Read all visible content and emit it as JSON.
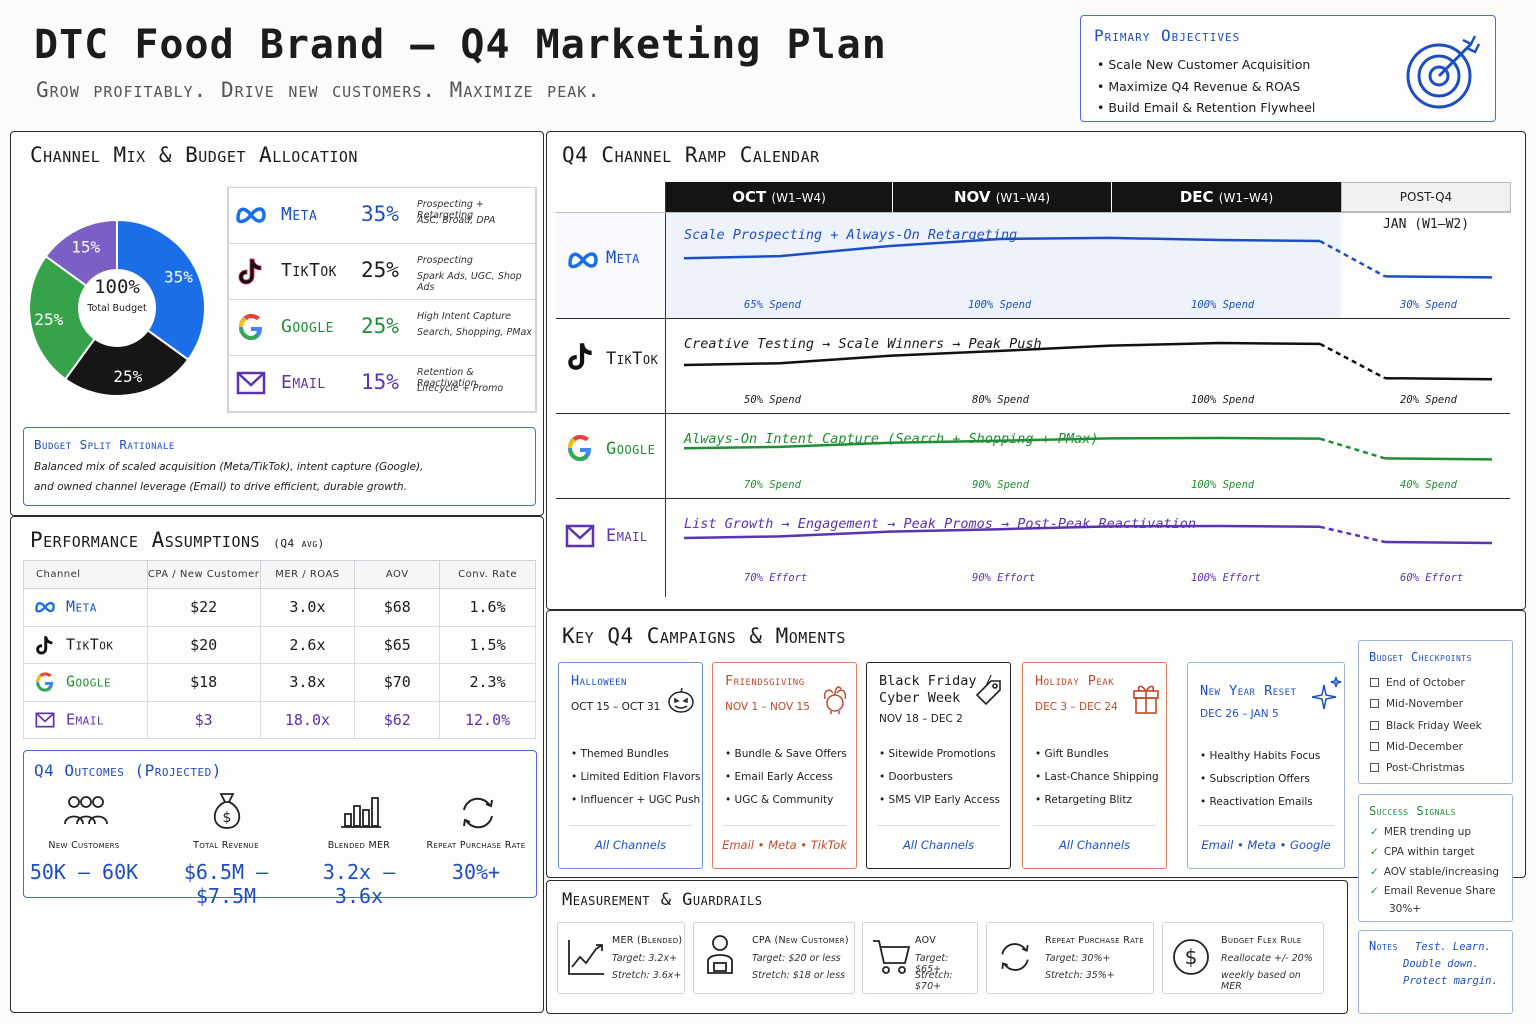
{
  "header": {
    "title": "DTC Food Brand – Q4 Marketing Plan",
    "subtitle": "Grow profitably. Drive new customers. Maximize peak."
  },
  "objectives": {
    "title": "Primary Objectives",
    "items": [
      "Scale New Customer Acquisition",
      "Maximize Q4 Revenue & ROAS",
      "Build Email & Retention Flywheel"
    ],
    "icon": "target-icon"
  },
  "channel_mix": {
    "title": "Channel Mix & Budget Allocation",
    "center_value": "100%",
    "center_label": "Total Budget",
    "channels": [
      {
        "name": "Meta",
        "pct": "35%",
        "desc1": "Prospecting + Retargeting",
        "desc2": "ASC, Broad, DPA",
        "color": "#1a6fe8",
        "icon": "meta-icon"
      },
      {
        "name": "TikTok",
        "pct": "25%",
        "desc1": "Prospecting",
        "desc2": "Spark Ads, UGC, Shop Ads",
        "color": "#161616",
        "icon": "tiktok-icon"
      },
      {
        "name": "Google",
        "pct": "25%",
        "desc1": "High Intent Capture",
        "desc2": "Search, Shopping, PMax",
        "color": "#36a24a",
        "icon": "google-icon"
      },
      {
        "name": "Email",
        "pct": "15%",
        "desc1": "Retention & Reactivation",
        "desc2": "Lifecycle + Promo",
        "color": "#7b5fc4",
        "icon": "email-icon"
      }
    ],
    "rationale_title": "Budget Split Rationale",
    "rationale_line1": "Balanced mix of scaled acquisition (Meta/TikTok), intent capture (Google),",
    "rationale_line2": "and owned channel leverage (Email) to drive efficient, durable growth."
  },
  "chart_data": {
    "type": "pie",
    "categories": [
      "Meta",
      "TikTok",
      "Google",
      "Email"
    ],
    "values": [
      35,
      25,
      25,
      15
    ],
    "labels": [
      "35%",
      "25%",
      "25%",
      "15%"
    ],
    "colors": [
      "#1a6fe8",
      "#161616",
      "#36a24a",
      "#7b5fc4"
    ]
  },
  "performance": {
    "title": "Performance Assumptions",
    "title_note": "(Q4 avg)",
    "columns": [
      "Channel",
      "CPA / New Customer",
      "MER / ROAS",
      "AOV",
      "Conv. Rate"
    ],
    "rows": [
      {
        "channel": "Meta",
        "cpa": "$22",
        "mer": "3.0x",
        "aov": "$68",
        "conv": "1.6%"
      },
      {
        "channel": "TikTok",
        "cpa": "$20",
        "mer": "2.6x",
        "aov": "$65",
        "conv": "1.5%"
      },
      {
        "channel": "Google",
        "cpa": "$18",
        "mer": "3.8x",
        "aov": "$70",
        "conv": "2.3%"
      },
      {
        "channel": "Email",
        "cpa": "$3",
        "mer": "18.0x",
        "aov": "$62",
        "conv": "12.0%"
      }
    ]
  },
  "outcomes": {
    "title": "Q4 Outcomes (Projected)",
    "items": [
      {
        "label": "New Customers",
        "value": "50K – 60K",
        "icon": "people-icon"
      },
      {
        "label": "Total Revenue",
        "value": "$6.5M – $7.5M",
        "icon": "money-bag-icon"
      },
      {
        "label": "Blended MER",
        "value": "3.2x – 3.6x",
        "icon": "bar-chart-icon"
      },
      {
        "label": "Repeat Purchase Rate",
        "value": "30%+",
        "icon": "refresh-icon"
      }
    ]
  },
  "calendar": {
    "title": "Q4 Channel Ramp Calendar",
    "months": [
      {
        "name": "OCT",
        "weeks": "(W1–W4)"
      },
      {
        "name": "NOV",
        "weeks": "(W1–W4)"
      },
      {
        "name": "DEC",
        "weeks": "(W1–W4)"
      }
    ],
    "post_label": "POST-Q4",
    "post_weeks": "JAN (W1–W2)",
    "rows": [
      {
        "channel": "Meta",
        "desc": "Scale Prospecting + Always-On Retargeting",
        "levels": [
          "65% Spend",
          "100% Spend",
          "100% Spend",
          "30% Spend"
        ],
        "level_values": [
          65,
          100,
          100,
          30
        ],
        "color": "#1d4fc4"
      },
      {
        "channel": "TikTok",
        "desc": "Creative Testing → Scale Winners → Peak Push",
        "levels": [
          "50% Spend",
          "80% Spend",
          "100% Spend",
          "20% Spend"
        ],
        "level_values": [
          50,
          80,
          100,
          20
        ],
        "color": "#111111"
      },
      {
        "channel": "Google",
        "desc": "Always-On Intent Capture (Search + Shopping + PMax)",
        "levels": [
          "70% Spend",
          "90% Spend",
          "100% Spend",
          "40% Spend"
        ],
        "level_values": [
          70,
          90,
          100,
          40
        ],
        "color": "#1f8f36"
      },
      {
        "channel": "Email",
        "desc": "List Growth → Engagement → Peak Promos → Post-Peak Reactivation",
        "levels": [
          "70% Effort",
          "90% Effort",
          "100% Effort",
          "60% Effort"
        ],
        "level_values": [
          70,
          90,
          100,
          60
        ],
        "color": "#5b33b3"
      }
    ]
  },
  "campaigns": {
    "title": "Key Q4 Campaigns & Moments",
    "items": [
      {
        "name1": "Halloween",
        "name2": "",
        "dates": "OCT 15 – OCT 31",
        "bullets": [
          "Themed Bundles",
          "Limited Edition Flavors",
          "Influencer + UGC Push"
        ],
        "channels": "All Channels",
        "color": "#1d4fc4",
        "icon": "pumpkin-icon"
      },
      {
        "name1": "Friendsgiving",
        "name2": "",
        "dates": "NOV 1 – NOV 15",
        "bullets": [
          "Bundle & Save Offers",
          "Email Early Access",
          "UGC & Community"
        ],
        "channels": "Email • Meta • TikTok",
        "color": "#c2492a",
        "icon": "turkey-icon"
      },
      {
        "name1": "Black Friday /",
        "name2": "Cyber Week",
        "dates": "NOV 18 – DEC 2",
        "bullets": [
          "Sitewide Promotions",
          "Doorbusters",
          "SMS VIP Early Access"
        ],
        "channels": "All Channels",
        "color": "#111111",
        "icon": "tag-icon"
      },
      {
        "name1": "Holiday Peak",
        "name2": "",
        "dates": "DEC 3 – DEC 24",
        "bullets": [
          "Gift Bundles",
          "Last-Chance Shipping",
          "Retargeting Blitz"
        ],
        "channels": "All Channels",
        "color": "#c2492a",
        "icon": "gift-icon"
      },
      {
        "name1": "New Year Reset",
        "name2": "",
        "dates": "DEC 26 – JAN 5",
        "bullets": [
          "Healthy Habits Focus",
          "Subscription Offers",
          "Reactivation Emails"
        ],
        "channels": "Email • Meta • Google",
        "color": "#1d4fc4",
        "icon": "sparkle-icon"
      }
    ]
  },
  "checkpoints": {
    "title": "Budget Checkpoints",
    "items": [
      "End of October",
      "Mid-November",
      "Black Friday Week",
      "Mid-December",
      "Post-Christmas"
    ]
  },
  "signals": {
    "title": "Success Signals",
    "items": [
      "MER trending up",
      "CPA within target",
      "AOV stable/increasing",
      "Email Revenue Share",
      "30%+"
    ]
  },
  "notes": {
    "title": "Notes",
    "lines": [
      "Test. Learn.",
      "Double down.",
      "Protect margin."
    ]
  },
  "measurement": {
    "title": "Measurement & Guardrails",
    "items": [
      {
        "title": "MER (Blended)",
        "line1": "Target: 3.2x+",
        "line2": "Stretch: 3.6x+",
        "icon": "trend-chart-icon"
      },
      {
        "title": "CPA (New Customer)",
        "line1": "Target: $20 or less",
        "line2": "Stretch: $18 or less",
        "icon": "user-icon"
      },
      {
        "title": "AOV",
        "line1": "Target: $65+",
        "line2": "Stretch: $70+",
        "icon": "cart-icon"
      },
      {
        "title": "Repeat Purchase Rate",
        "line1": "Target: 30%+",
        "line2": "Stretch: 35%+",
        "icon": "refresh-icon"
      },
      {
        "title": "Budget Flex Rule",
        "line1": "Reallocate +/- 20%",
        "line2": "weekly based on MER",
        "icon": "dollar-icon"
      }
    ]
  }
}
